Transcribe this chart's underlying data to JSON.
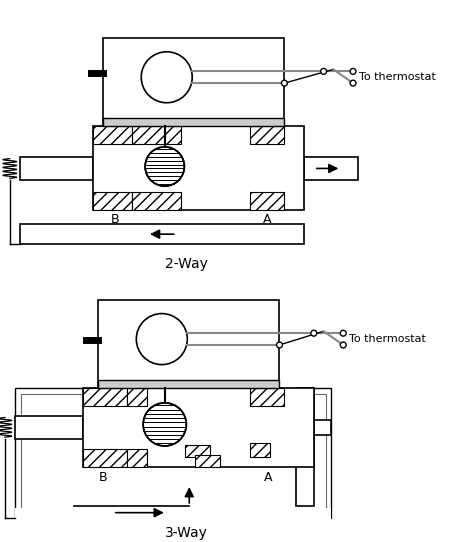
{
  "title_2way": "2-Way",
  "title_3way": "3-Way",
  "thermostat_label": "To thermostat",
  "label_A": "A",
  "label_B": "B",
  "bg_color": "#ffffff",
  "line_color": "#000000",
  "font_size_label": 8,
  "font_size_title": 9,
  "gray_wire": "#888888"
}
